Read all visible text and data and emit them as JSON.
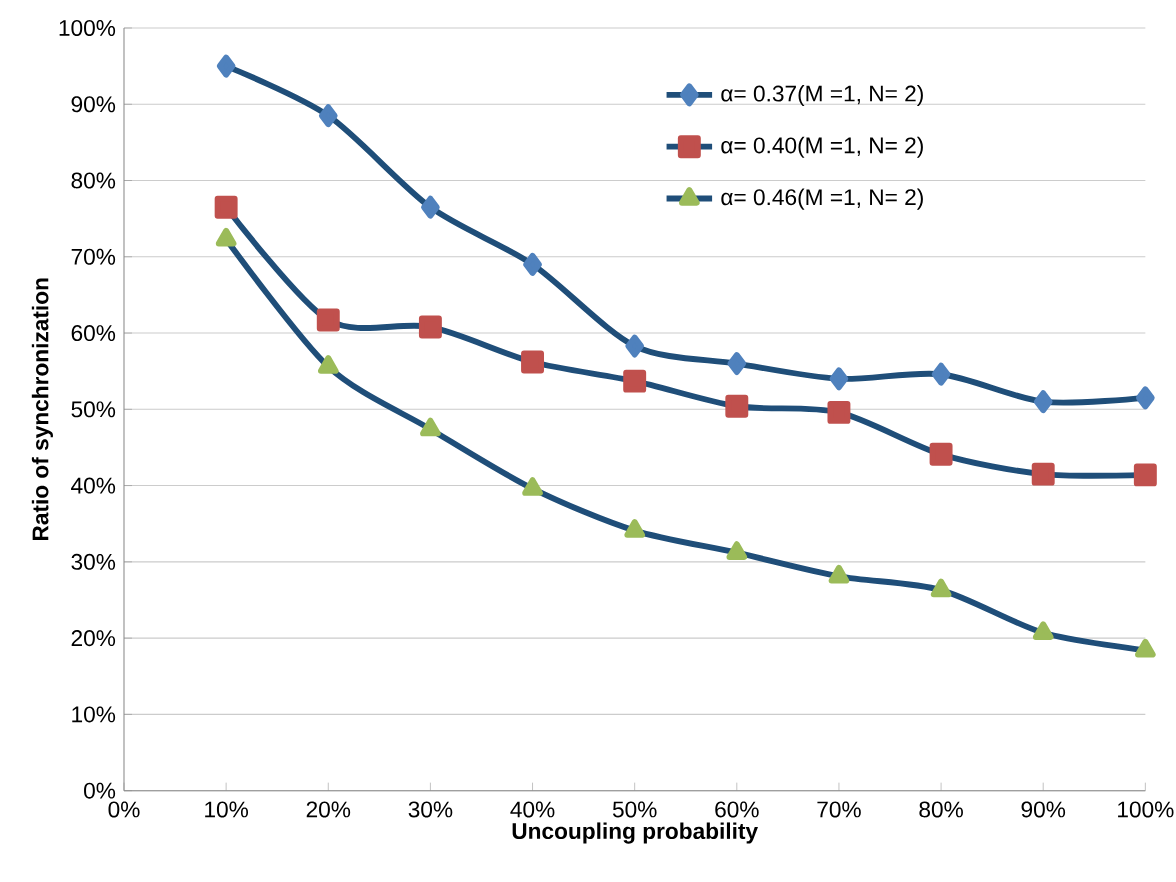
{
  "chart_data": {
    "type": "line",
    "xlabel": "Uncoupling probability",
    "ylabel": "Ratio of synchronization",
    "x": [
      10,
      20,
      30,
      40,
      50,
      60,
      70,
      80,
      90,
      100
    ],
    "series": [
      {
        "name": "α= 0.37(M =1, N= 2)",
        "color": "#4f81bd",
        "marker": "diamond",
        "values": [
          95,
          88.5,
          76.5,
          69,
          58.3,
          56,
          54,
          54.6,
          51,
          51.5
        ]
      },
      {
        "name": "α= 0.40(M =1, N= 2)",
        "color": "#c0504d",
        "marker": "square",
        "values": [
          76.5,
          61.7,
          60.8,
          56.2,
          53.7,
          50.4,
          49.6,
          44.1,
          41.5,
          41.4
        ]
      },
      {
        "name": "α= 0.46(M =1, N= 2)",
        "color": "#9bbb59",
        "marker": "triangle",
        "values": [
          72.3,
          55.6,
          47.4,
          39.6,
          34.1,
          31.2,
          28.1,
          26.3,
          20.7,
          18.4
        ]
      }
    ],
    "xlim": [
      0,
      100
    ],
    "ylim": [
      0,
      100
    ],
    "xticks": [
      {
        "value": 0,
        "label": "0%"
      },
      {
        "value": 10,
        "label": "10%"
      },
      {
        "value": 20,
        "label": "20%"
      },
      {
        "value": 30,
        "label": "30%"
      },
      {
        "value": 40,
        "label": "40%"
      },
      {
        "value": 50,
        "label": "50%"
      },
      {
        "value": 60,
        "label": "60%"
      },
      {
        "value": 70,
        "label": "70%"
      },
      {
        "value": 80,
        "label": "80%"
      },
      {
        "value": 90,
        "label": "90%"
      },
      {
        "value": 100,
        "label": "100%"
      }
    ],
    "yticks": [
      {
        "value": 0,
        "label": "0%"
      },
      {
        "value": 10,
        "label": "10%"
      },
      {
        "value": 20,
        "label": "20%"
      },
      {
        "value": 30,
        "label": "30%"
      },
      {
        "value": 40,
        "label": "40%"
      },
      {
        "value": 50,
        "label": "50%"
      },
      {
        "value": 60,
        "label": "60%"
      },
      {
        "value": 70,
        "label": "70%"
      },
      {
        "value": 80,
        "label": "80%"
      },
      {
        "value": 90,
        "label": "90%"
      },
      {
        "value": 100,
        "label": "100%"
      }
    ],
    "grid": "y",
    "legend": "top right",
    "line_style": "solid"
  }
}
